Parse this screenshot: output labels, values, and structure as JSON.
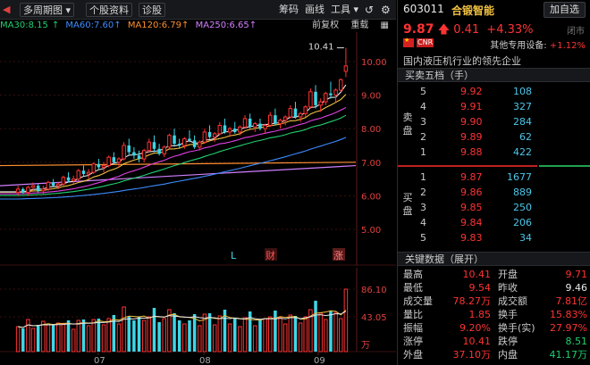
{
  "toolbar": {
    "period": "多周期图",
    "stock_info": "个股资料",
    "diagnose": "诊股",
    "chips": "筹码",
    "draw": "画线",
    "tools": "工具"
  },
  "ma": {
    "ma30": "MA30:8.15",
    "ma60": "MA60:7.60",
    "ma120": "MA120:6.79",
    "ma250": "MA250:6.65",
    "fq": "前复权",
    "overlay": "重载"
  },
  "price_axis": [
    "10.00",
    "9.00",
    "8.00",
    "7.00",
    "6.00",
    "5.00"
  ],
  "high_label": "10.41",
  "markers": {
    "l": "L",
    "cai": "财",
    "zhang": "涨"
  },
  "vol_axis": [
    "86.10",
    "43.05",
    "万"
  ],
  "months": [
    "07",
    "08",
    "09"
  ],
  "colors": {
    "up": "#ff3333",
    "down": "#3ed6e6",
    "ma5": "#e8e8e8",
    "ma10": "#f0c040",
    "ma20": "#e040e0",
    "ma30": "#20d070",
    "ma60": "#3c8cff",
    "ma120": "#ff9030",
    "ma250": "#d080ff"
  },
  "header": {
    "code": "603011",
    "name": "合锻智能",
    "add": "加自选",
    "price": "9.87",
    "change": "0.41",
    "pct": "+4.33%",
    "status": "闭市",
    "other_label": "其他专用设备:",
    "other_pct": "+1.12%",
    "cnr": "CNR",
    "desc": "国内液压机行业的领先企业"
  },
  "orderbook": {
    "title": "买卖五档（手）",
    "sell_label": "卖盘",
    "buy_label": "买盘",
    "sells": [
      {
        "lv": "5",
        "price": "9.92",
        "vol": "108"
      },
      {
        "lv": "4",
        "price": "9.91",
        "vol": "327"
      },
      {
        "lv": "3",
        "price": "9.90",
        "vol": "284"
      },
      {
        "lv": "2",
        "price": "9.89",
        "vol": "62"
      },
      {
        "lv": "1",
        "price": "9.88",
        "vol": "422"
      }
    ],
    "buys": [
      {
        "lv": "1",
        "price": "9.87",
        "vol": "1677"
      },
      {
        "lv": "2",
        "price": "9.86",
        "vol": "889"
      },
      {
        "lv": "3",
        "price": "9.85",
        "vol": "250"
      },
      {
        "lv": "4",
        "price": "9.84",
        "vol": "206"
      },
      {
        "lv": "5",
        "price": "9.83",
        "vol": "34"
      }
    ]
  },
  "keydata": {
    "title": "关键数据（展开）",
    "rows": [
      {
        "l1": "最高",
        "v1": "10.41",
        "l2": "开盘",
        "v2": "9.71"
      },
      {
        "l1": "最低",
        "v1": "9.54",
        "l2": "昨收",
        "v2": "9.46"
      },
      {
        "l1": "成交量",
        "v1": "78.27万",
        "l2": "成交额",
        "v2": "7.81亿"
      },
      {
        "l1": "量比",
        "v1": "1.85",
        "l2": "换手",
        "v2": "15.83%"
      },
      {
        "l1": "振幅",
        "v1": "9.20%",
        "l2": "换手(实)",
        "v2": "27.97%"
      },
      {
        "l1": "涨停",
        "v1": "10.41",
        "l2": "跌停",
        "v2": "8.51"
      },
      {
        "l1": "外盘",
        "v1": "37.10万",
        "l2": "内盘",
        "v2": "41.17万"
      }
    ]
  },
  "chart_data": {
    "type": "candlestick",
    "y_axis": [
      5.0,
      10.0
    ],
    "high_marker": 10.41,
    "last_close": 9.87,
    "candles": [
      [
        6.1,
        6.3,
        6.0,
        6.2
      ],
      [
        6.2,
        6.25,
        6.05,
        6.1
      ],
      [
        6.1,
        6.3,
        6.0,
        6.25
      ],
      [
        6.25,
        6.4,
        6.15,
        6.3
      ],
      [
        6.3,
        6.35,
        6.1,
        6.15
      ],
      [
        6.15,
        6.3,
        6.05,
        6.2
      ],
      [
        6.2,
        6.45,
        6.15,
        6.4
      ],
      [
        6.4,
        6.5,
        6.25,
        6.3
      ],
      [
        6.3,
        6.4,
        6.2,
        6.35
      ],
      [
        6.35,
        6.6,
        6.3,
        6.55
      ],
      [
        6.55,
        6.7,
        6.4,
        6.45
      ],
      [
        6.45,
        6.6,
        6.35,
        6.5
      ],
      [
        6.5,
        6.8,
        6.45,
        6.75
      ],
      [
        6.75,
        6.9,
        6.6,
        6.65
      ],
      [
        6.65,
        6.8,
        6.5,
        6.7
      ],
      [
        6.7,
        7.0,
        6.65,
        6.95
      ],
      [
        6.95,
        7.1,
        6.8,
        6.85
      ],
      [
        6.85,
        7.0,
        6.7,
        6.9
      ],
      [
        6.9,
        7.2,
        6.85,
        7.15
      ],
      [
        7.15,
        7.3,
        6.95,
        7.0
      ],
      [
        7.0,
        7.15,
        6.85,
        7.1
      ],
      [
        7.1,
        7.6,
        7.05,
        7.5
      ],
      [
        7.5,
        7.7,
        7.2,
        7.3
      ],
      [
        7.3,
        7.45,
        7.1,
        7.2
      ],
      [
        7.2,
        7.35,
        7.0,
        7.1
      ],
      [
        7.1,
        7.4,
        7.0,
        7.35
      ],
      [
        7.35,
        7.7,
        7.3,
        7.6
      ],
      [
        7.6,
        7.8,
        7.3,
        7.4
      ],
      [
        7.4,
        7.55,
        7.2,
        7.25
      ],
      [
        7.25,
        7.5,
        7.15,
        7.45
      ],
      [
        7.45,
        7.85,
        7.4,
        7.8
      ],
      [
        7.8,
        8.0,
        7.5,
        7.55
      ],
      [
        7.55,
        7.7,
        7.4,
        7.5
      ],
      [
        7.5,
        7.75,
        7.4,
        7.7
      ],
      [
        7.7,
        7.95,
        7.6,
        7.65
      ],
      [
        7.65,
        7.8,
        7.4,
        7.45
      ],
      [
        7.45,
        7.65,
        7.35,
        7.6
      ],
      [
        7.6,
        8.0,
        7.55,
        7.9
      ],
      [
        7.9,
        8.1,
        7.7,
        7.75
      ],
      [
        7.75,
        7.9,
        7.6,
        7.85
      ],
      [
        7.85,
        8.2,
        7.8,
        8.1
      ],
      [
        8.1,
        8.3,
        7.85,
        7.9
      ],
      [
        7.9,
        8.05,
        7.75,
        8.0
      ],
      [
        8.0,
        8.2,
        7.85,
        7.9
      ],
      [
        7.9,
        8.1,
        7.8,
        8.05
      ],
      [
        8.05,
        8.4,
        8.0,
        8.3
      ],
      [
        8.3,
        8.45,
        8.0,
        8.05
      ],
      [
        8.05,
        8.2,
        7.9,
        8.15
      ],
      [
        8.15,
        8.3,
        7.95,
        8.0
      ],
      [
        8.0,
        8.15,
        7.85,
        8.1
      ],
      [
        8.1,
        8.5,
        8.05,
        8.4
      ],
      [
        8.4,
        8.6,
        8.1,
        8.15
      ],
      [
        8.15,
        8.3,
        8.0,
        8.25
      ],
      [
        8.25,
        8.4,
        8.1,
        8.35
      ],
      [
        8.35,
        8.7,
        8.3,
        8.6
      ],
      [
        8.6,
        8.8,
        8.3,
        8.35
      ],
      [
        8.35,
        8.5,
        8.2,
        8.45
      ],
      [
        8.45,
        8.7,
        8.35,
        8.65
      ],
      [
        8.65,
        9.2,
        8.6,
        9.1
      ],
      [
        9.1,
        9.3,
        8.6,
        8.7
      ],
      [
        8.7,
        8.9,
        8.5,
        8.8
      ],
      [
        8.8,
        9.1,
        8.7,
        9.05
      ],
      [
        9.05,
        9.4,
        8.9,
        9.0
      ],
      [
        9.0,
        9.2,
        8.8,
        9.15
      ],
      [
        9.15,
        9.5,
        9.1,
        9.46
      ],
      [
        9.71,
        10.41,
        9.54,
        9.87
      ]
    ]
  }
}
